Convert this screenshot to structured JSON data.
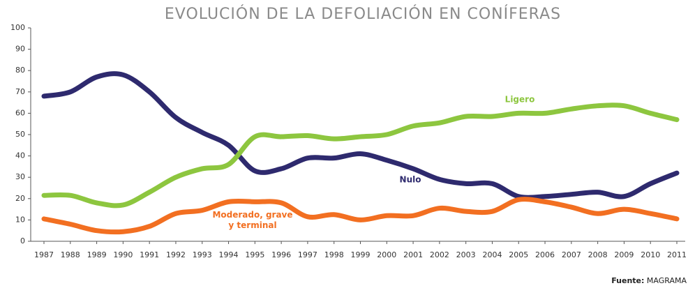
{
  "chart_data": {
    "type": "line",
    "title": "EVOLUCIÓN DE LA DEFOLIACIÓN EN CONÍFERAS",
    "categories": [
      "1987",
      "1988",
      "1989",
      "1990",
      "1991",
      "1992",
      "1993",
      "1994",
      "1995",
      "1996",
      "1997",
      "1998",
      "1999",
      "2000",
      "2001",
      "2002",
      "2003",
      "2004",
      "2005",
      "2006",
      "2007",
      "2008",
      "2009",
      "2010",
      "2011"
    ],
    "series": [
      {
        "name": "Nulo",
        "color": "#2e2a6e",
        "values": [
          68,
          70,
          77,
          78,
          70,
          58,
          51,
          45,
          33,
          34,
          39,
          39,
          41,
          38,
          34,
          29,
          27,
          27,
          21,
          21,
          22,
          23,
          21,
          27,
          32
        ]
      },
      {
        "name": "Ligero",
        "color": "#8dc63f",
        "values": [
          21.5,
          21.5,
          18,
          17,
          23,
          30,
          34,
          36,
          49,
          49,
          49.5,
          48,
          49,
          50,
          54,
          55.5,
          58.5,
          58.5,
          60,
          60,
          62,
          63.5,
          63.5,
          60,
          57
        ]
      },
      {
        "name": "Moderado, grave y terminal",
        "color": "#f26f21",
        "values": [
          10.5,
          8,
          5,
          4.5,
          7,
          13,
          14.5,
          18.5,
          18.5,
          18,
          11.5,
          12.5,
          10,
          12,
          12,
          15.5,
          14,
          14,
          19.5,
          18.5,
          16,
          13,
          15,
          13,
          10.5
        ]
      }
    ],
    "ylim": [
      0,
      100
    ],
    "yticks": [
      0,
      10,
      20,
      30,
      40,
      50,
      60,
      70,
      80,
      90,
      100
    ],
    "source": {
      "label": "Fuente:",
      "text": "MAGRAMA"
    }
  }
}
